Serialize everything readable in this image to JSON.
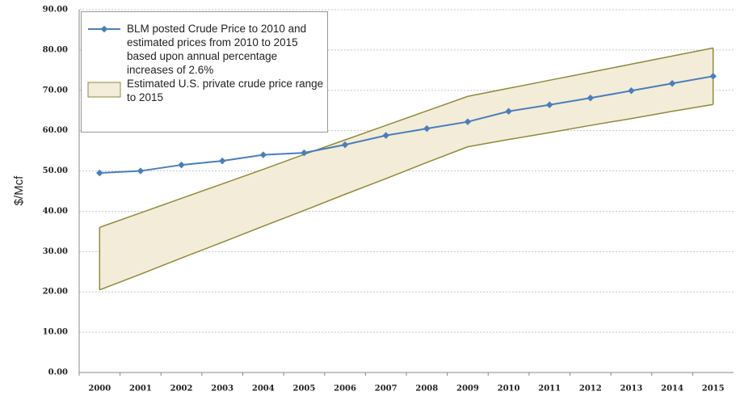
{
  "chart_data": {
    "type": "line",
    "y_label": "$/Mcf",
    "categories": [
      "2000",
      "2001",
      "2002",
      "2003",
      "2004",
      "2005",
      "2006",
      "2007",
      "2008",
      "2009",
      "2010",
      "2011",
      "2012",
      "2013",
      "2014",
      "2015"
    ],
    "ylim": [
      0,
      90
    ],
    "yticks": [
      {
        "value": 0,
        "label": "0.00"
      },
      {
        "value": 10,
        "label": "10.00"
      },
      {
        "value": 20,
        "label": "20.00"
      },
      {
        "value": 30,
        "label": "30.00"
      },
      {
        "value": 40,
        "label": "40.00"
      },
      {
        "value": 50,
        "label": "50.00"
      },
      {
        "value": 60,
        "label": "60.00"
      },
      {
        "value": 70,
        "label": "70.00"
      },
      {
        "value": 80,
        "label": "80.00"
      },
      {
        "value": 90,
        "label": "90.00"
      }
    ],
    "grid": true,
    "series": [
      {
        "name": "BLM posted Crude Price to 2010 and estimated prices from 2010 to 2015 based upon annual percentage increases of 2.6%",
        "color": "#4a7ebb",
        "values": [
          49.5,
          50.0,
          51.5,
          52.5,
          54.0,
          54.5,
          56.5,
          58.8,
          60.5,
          62.2,
          64.8,
          66.4,
          68.1,
          69.9,
          71.7,
          73.5
        ]
      },
      {
        "name": "Estimated U.S. private crude price range to 2015",
        "type": "range",
        "color": "#f3ecd9",
        "edge_color": "#8f8a3a",
        "lower": [
          20.5,
          24.4,
          28.4,
          32.3,
          36.3,
          40.2,
          44.2,
          48.1,
          52.1,
          56.0,
          57.8,
          59.5,
          61.3,
          63.0,
          64.8,
          66.5
        ],
        "upper": [
          36.0,
          39.6,
          43.2,
          46.8,
          50.4,
          54.1,
          57.7,
          61.3,
          64.9,
          68.5,
          70.5,
          72.5,
          74.5,
          76.5,
          78.5,
          80.5
        ]
      }
    ]
  }
}
